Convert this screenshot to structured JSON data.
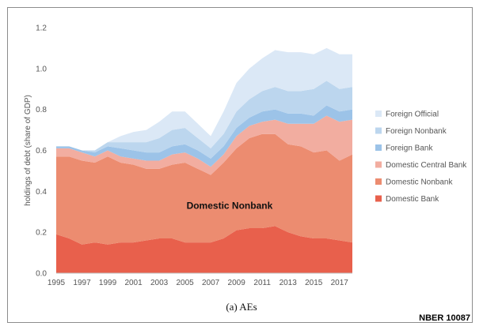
{
  "chart_data": {
    "type": "area",
    "stacked": true,
    "title": "",
    "xlabel": "",
    "ylabel": "holdings of debt (share of GDP)",
    "ylim": [
      0,
      1.2
    ],
    "xlim": [
      1995,
      2018
    ],
    "yticks": [
      "0.0",
      "0.2",
      "0.4",
      "0.6",
      "0.8",
      "1.0",
      "1.2"
    ],
    "xticks": [
      "1995",
      "1997",
      "1999",
      "2001",
      "2003",
      "2005",
      "2007",
      "2009",
      "2011",
      "2013",
      "2015",
      "2017"
    ],
    "grid": false,
    "legend_position": "right",
    "x": [
      1995,
      1996,
      1997,
      1998,
      1999,
      2000,
      2001,
      2002,
      2003,
      2004,
      2005,
      2006,
      2007,
      2008,
      2009,
      2010,
      2011,
      2012,
      2013,
      2014,
      2015,
      2016,
      2017,
      2018
    ],
    "series": [
      {
        "name": "Domestic Bank",
        "color": "#e8604c",
        "values": [
          0.19,
          0.17,
          0.14,
          0.15,
          0.14,
          0.15,
          0.15,
          0.16,
          0.17,
          0.17,
          0.15,
          0.15,
          0.15,
          0.17,
          0.21,
          0.22,
          0.22,
          0.23,
          0.2,
          0.18,
          0.17,
          0.17,
          0.16,
          0.15
        ]
      },
      {
        "name": "Domestic Nonbank",
        "color": "#ec8c70",
        "values": [
          0.38,
          0.4,
          0.41,
          0.39,
          0.43,
          0.39,
          0.38,
          0.35,
          0.34,
          0.36,
          0.39,
          0.36,
          0.33,
          0.37,
          0.4,
          0.44,
          0.46,
          0.45,
          0.43,
          0.44,
          0.42,
          0.43,
          0.39,
          0.43
        ]
      },
      {
        "name": "Domestic Central Bank",
        "color": "#f2ada0",
        "values": [
          0.04,
          0.04,
          0.04,
          0.03,
          0.03,
          0.03,
          0.03,
          0.04,
          0.04,
          0.05,
          0.05,
          0.05,
          0.04,
          0.04,
          0.06,
          0.06,
          0.06,
          0.07,
          0.1,
          0.11,
          0.14,
          0.17,
          0.19,
          0.17
        ]
      },
      {
        "name": "Foreign Bank",
        "color": "#9cc3e8",
        "values": [
          0.01,
          0.01,
          0.01,
          0.02,
          0.02,
          0.04,
          0.04,
          0.04,
          0.04,
          0.04,
          0.04,
          0.04,
          0.04,
          0.04,
          0.04,
          0.04,
          0.05,
          0.05,
          0.05,
          0.05,
          0.04,
          0.05,
          0.05,
          0.05
        ]
      },
      {
        "name": "Foreign Nonbank",
        "color": "#bcd6ee",
        "values": [
          0.0,
          0.0,
          0.0,
          0.01,
          0.02,
          0.03,
          0.04,
          0.05,
          0.07,
          0.08,
          0.08,
          0.06,
          0.05,
          0.06,
          0.08,
          0.09,
          0.1,
          0.11,
          0.11,
          0.11,
          0.13,
          0.12,
          0.11,
          0.11
        ]
      },
      {
        "name": "Foreign Official",
        "color": "#dbe8f6",
        "values": [
          0.0,
          0.0,
          0.0,
          0.0,
          0.0,
          0.03,
          0.05,
          0.06,
          0.08,
          0.09,
          0.08,
          0.07,
          0.06,
          0.11,
          0.14,
          0.15,
          0.16,
          0.18,
          0.19,
          0.19,
          0.17,
          0.16,
          0.17,
          0.16
        ]
      }
    ],
    "annotations": [
      {
        "text": "Domestic Nonbank",
        "x": 2010,
        "y": 0.33
      }
    ]
  },
  "caption": "(a) AEs",
  "source_label": "NBER 10087"
}
